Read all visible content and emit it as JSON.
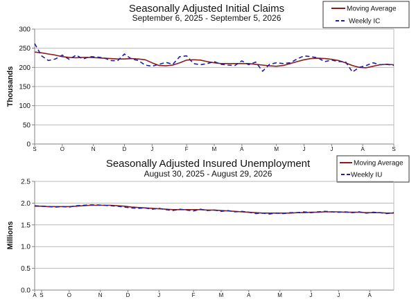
{
  "colors": {
    "moving_average": "#8b1a1a",
    "weekly": "#1f1f9e",
    "grid": "#b8b8b8",
    "axis": "#808080"
  },
  "chart_data": [
    {
      "type": "line",
      "title": "Seasonally Adjusted Initial Claims",
      "subtitle": "September 6, 2025 - September 5, 2026",
      "ylabel": "Thousands",
      "xlabel": "",
      "ylim": [
        0,
        300
      ],
      "yticks": [
        0,
        50,
        100,
        150,
        200,
        250,
        300
      ],
      "ytick_labels": [
        "0",
        "50",
        "100",
        "150",
        "200",
        "250",
        "300"
      ],
      "grid": "horizontal",
      "legend_position": "top-right",
      "month_ticks": [
        {
          "week": 0,
          "label": "S"
        },
        {
          "week": 4,
          "label": "O"
        },
        {
          "week": 8.5,
          "label": "N"
        },
        {
          "week": 13,
          "label": "D"
        },
        {
          "week": 17,
          "label": "J"
        },
        {
          "week": 22,
          "label": "F"
        },
        {
          "week": 26,
          "label": "M"
        },
        {
          "week": 30,
          "label": "A"
        },
        {
          "week": 35,
          "label": "M"
        },
        {
          "week": 39,
          "label": "J"
        },
        {
          "week": 43,
          "label": "J"
        },
        {
          "week": 47.5,
          "label": "A"
        },
        {
          "week": 52,
          "label": "S"
        }
      ],
      "series": [
        {
          "name": "Moving Average",
          "style": "solid",
          "values": [
            240,
            238,
            235,
            232,
            228,
            226,
            225,
            226,
            226,
            225,
            224,
            223,
            222,
            222,
            223,
            222,
            220,
            212,
            205,
            204,
            206,
            212,
            219,
            220,
            219,
            215,
            212,
            210,
            210,
            210,
            210,
            210,
            208,
            206,
            204,
            203,
            205,
            210,
            215,
            220,
            223,
            224,
            223,
            221,
            218,
            212,
            205,
            200,
            199,
            203,
            207,
            208,
            207
          ]
        },
        {
          "name": "Weekly IC",
          "style": "dashed",
          "values": [
            262,
            230,
            218,
            222,
            232,
            221,
            232,
            222,
            228,
            227,
            225,
            218,
            217,
            235,
            222,
            218,
            206,
            203,
            208,
            213,
            208,
            228,
            230,
            210,
            207,
            210,
            215,
            208,
            206,
            205,
            217,
            207,
            214,
            190,
            208,
            212,
            210,
            212,
            222,
            230,
            228,
            225,
            215,
            219,
            215,
            215,
            188,
            200,
            205,
            212,
            207,
            208,
            205
          ]
        }
      ]
    },
    {
      "type": "line",
      "title": "Seasonally Adjusted Insured Unemployment",
      "subtitle": "August 30, 2025 - August 29, 2026",
      "ylabel": "Millions",
      "xlabel": "",
      "ylim": [
        0,
        2.5
      ],
      "yticks": [
        0,
        0.5,
        1.0,
        1.5,
        2.0,
        2.5
      ],
      "ytick_labels": [
        "0.0",
        "0.5",
        "1.0",
        "1.5",
        "2.0",
        "2.5"
      ],
      "grid": "horizontal",
      "legend_position": "top-right",
      "month_ticks": [
        {
          "week": 0,
          "label": "A"
        },
        {
          "week": 1,
          "label": "S"
        },
        {
          "week": 5,
          "label": "O"
        },
        {
          "week": 9.5,
          "label": "N"
        },
        {
          "week": 13.5,
          "label": "D"
        },
        {
          "week": 18,
          "label": "J"
        },
        {
          "week": 23,
          "label": "F"
        },
        {
          "week": 27,
          "label": "M"
        },
        {
          "week": 31,
          "label": "A"
        },
        {
          "week": 35.5,
          "label": "M"
        },
        {
          "week": 40,
          "label": "J"
        },
        {
          "week": 44,
          "label": "J"
        },
        {
          "week": 48.5,
          "label": "A"
        }
      ],
      "series": [
        {
          "name": "Moving Average",
          "style": "solid",
          "values": [
            1.93,
            1.93,
            1.92,
            1.92,
            1.92,
            1.92,
            1.93,
            1.94,
            1.95,
            1.95,
            1.95,
            1.95,
            1.94,
            1.93,
            1.91,
            1.9,
            1.89,
            1.88,
            1.87,
            1.86,
            1.85,
            1.85,
            1.85,
            1.85,
            1.85,
            1.84,
            1.84,
            1.83,
            1.82,
            1.81,
            1.8,
            1.79,
            1.78,
            1.77,
            1.77,
            1.77,
            1.77,
            1.77,
            1.78,
            1.78,
            1.79,
            1.79,
            1.8,
            1.8,
            1.8,
            1.79,
            1.79,
            1.79,
            1.78,
            1.78,
            1.78,
            1.77,
            1.77
          ]
        },
        {
          "name": "Weekly IU",
          "style": "dashed",
          "values": [
            1.94,
            1.93,
            1.92,
            1.91,
            1.92,
            1.91,
            1.94,
            1.95,
            1.96,
            1.96,
            1.95,
            1.94,
            1.93,
            1.91,
            1.89,
            1.88,
            1.89,
            1.86,
            1.88,
            1.85,
            1.83,
            1.86,
            1.84,
            1.82,
            1.86,
            1.83,
            1.84,
            1.81,
            1.83,
            1.8,
            1.81,
            1.79,
            1.76,
            1.77,
            1.75,
            1.77,
            1.76,
            1.78,
            1.78,
            1.8,
            1.78,
            1.8,
            1.81,
            1.8,
            1.79,
            1.8,
            1.78,
            1.8,
            1.77,
            1.79,
            1.78,
            1.76,
            1.78
          ]
        }
      ]
    }
  ]
}
